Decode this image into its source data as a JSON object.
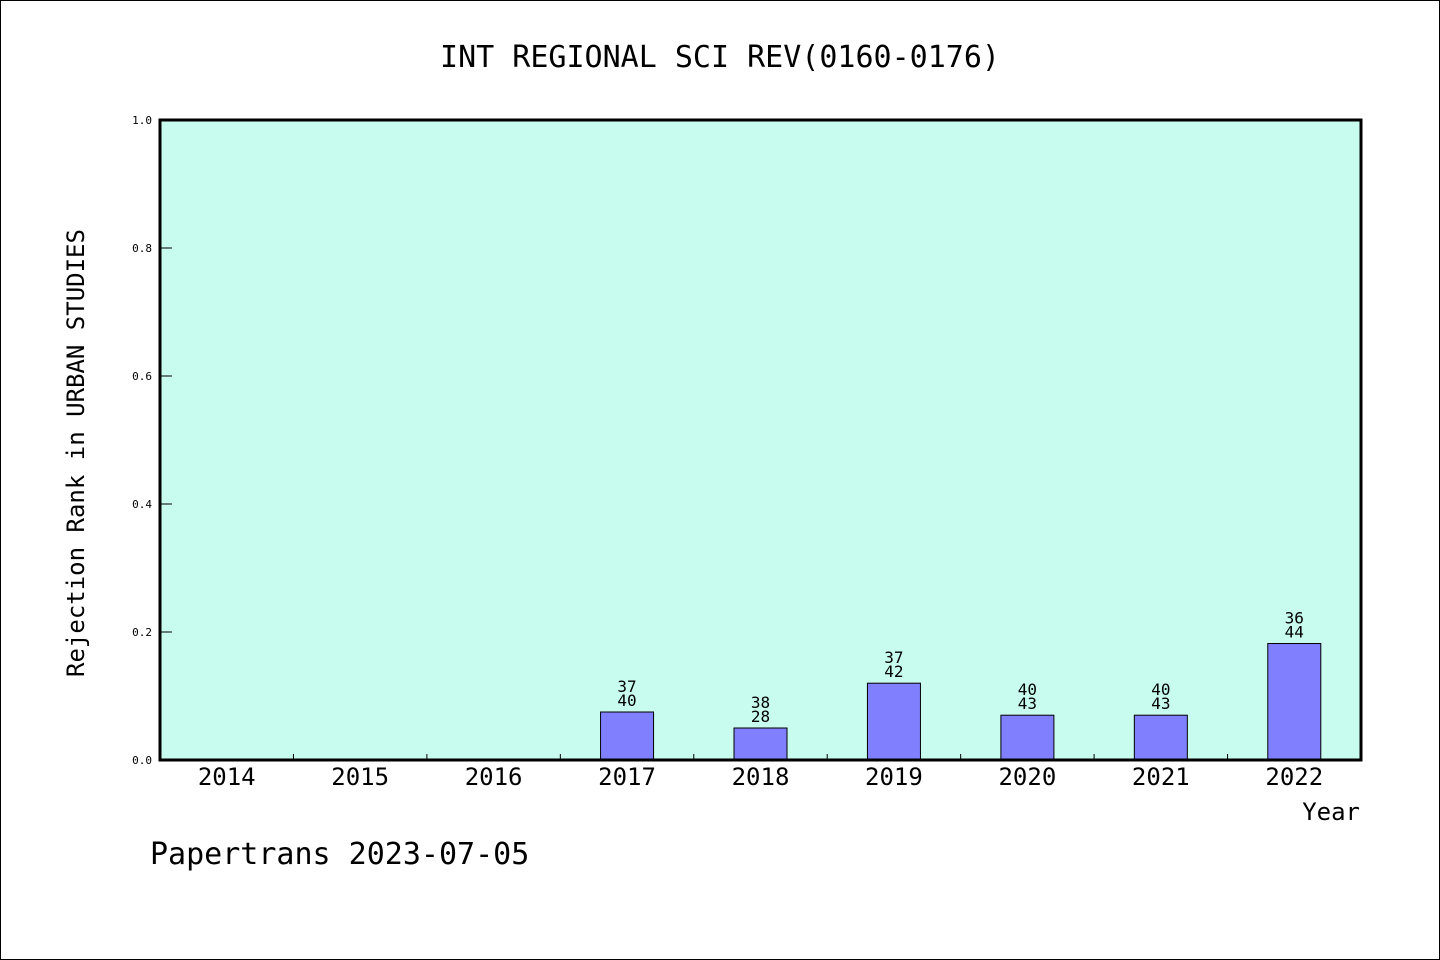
{
  "chart_data": {
    "type": "bar",
    "title": "INT REGIONAL SCI REV(0160-0176)",
    "xlabel": "Year",
    "ylabel": "Rejection Rank in URBAN STUDIES",
    "ylim": [
      0,
      1.0
    ],
    "yticks": [
      "0.0",
      "0.2",
      "0.4",
      "0.6",
      "0.8",
      "1.0"
    ],
    "categories": [
      "2014",
      "2015",
      "2016",
      "2017",
      "2018",
      "2019",
      "2020",
      "2021",
      "2022"
    ],
    "values": [
      null,
      null,
      null,
      0.075,
      0.05,
      0.12,
      0.07,
      0.07,
      0.182
    ],
    "labels_top": [
      "",
      "",
      "",
      "37",
      "38",
      "37",
      "40",
      "40",
      "36"
    ],
    "labels_bottom": [
      "",
      "",
      "",
      "40",
      "28",
      "42",
      "43",
      "43",
      "44"
    ],
    "grid": false,
    "colors": {
      "plot_background": "#c8fcee",
      "bar_fill": "#8080ff",
      "bar_stroke": "#000000"
    }
  },
  "footer": {
    "credit": "Papertrans 2023-07-05"
  }
}
